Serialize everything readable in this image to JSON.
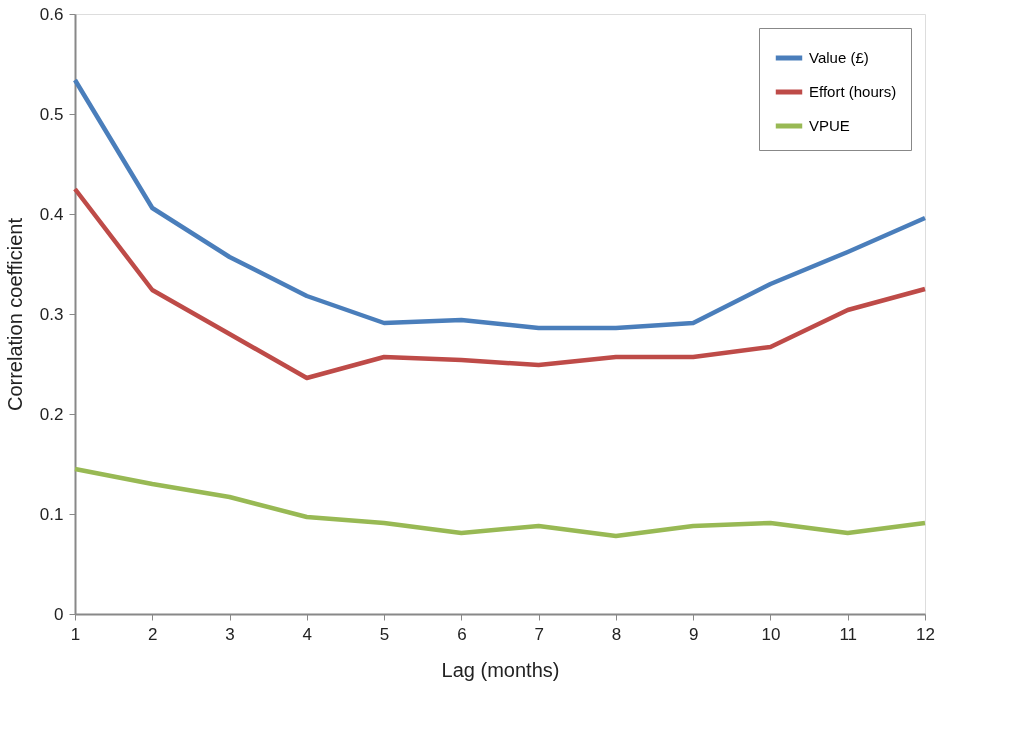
{
  "chart_data": {
    "type": "line",
    "xlabel": "Lag (months)",
    "ylabel": "Correlation coefficient",
    "x": [
      1,
      2,
      3,
      4,
      5,
      6,
      7,
      8,
      9,
      10,
      11,
      12
    ],
    "series": [
      {
        "name": "Value (£)",
        "color": "#4a7ebb",
        "values": [
          0.534,
          0.406,
          0.357,
          0.318,
          0.291,
          0.294,
          0.286,
          0.286,
          0.291,
          0.33,
          0.362,
          0.396
        ]
      },
      {
        "name": "Effort (hours)",
        "color": "#be4b48",
        "values": [
          0.425,
          0.324,
          0.28,
          0.236,
          0.257,
          0.254,
          0.249,
          0.257,
          0.257,
          0.267,
          0.304,
          0.325
        ]
      },
      {
        "name": "VPUE",
        "color": "#98b954",
        "values": [
          0.145,
          0.13,
          0.117,
          0.097,
          0.091,
          0.081,
          0.088,
          0.078,
          0.088,
          0.091,
          0.081,
          0.091
        ]
      }
    ],
    "xlim": [
      1,
      12
    ],
    "xticks": [
      1,
      2,
      3,
      4,
      5,
      6,
      7,
      8,
      9,
      10,
      11,
      12
    ],
    "ylim": [
      0,
      0.6
    ],
    "yticks": [
      0,
      0.1,
      0.2,
      0.3,
      0.4,
      0.5,
      0.6
    ],
    "grid": false,
    "legend": "top right",
    "marker": "none",
    "line_style": "solid"
  }
}
